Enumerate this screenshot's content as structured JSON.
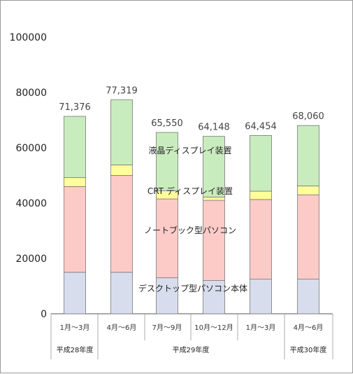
{
  "chart_data": {
    "type": "bar",
    "stacked": true,
    "categories": [
      "1月～3月",
      "4月～6月",
      "7月～9月",
      "10月～12月",
      "1月～3月",
      "4月～6月"
    ],
    "category_groups": [
      {
        "label": "平成28年度",
        "categories": [
          0
        ]
      },
      {
        "label": "平成29年度",
        "categories": [
          1,
          2,
          3,
          4
        ]
      },
      {
        "label": "平成30年度",
        "categories": [
          5
        ]
      }
    ],
    "highlight_index": 5,
    "highlight_color": "#e8231c",
    "totals": [
      "71,376",
      "77,319",
      "65,550",
      "64,148",
      "64,454",
      "68,060"
    ],
    "series": [
      {
        "name": "デスクトップ型パソコン本体",
        "color": "#d8dded",
        "values": [
          15000,
          15000,
          13000,
          12000,
          12500,
          12500
        ]
      },
      {
        "name": "ノートブック型パソコン",
        "color": "#fccbc8",
        "values": [
          31000,
          35000,
          28500,
          29000,
          28800,
          30500
        ]
      },
      {
        "name": "CRT ディスプレイ装置",
        "color": "#ffff9a",
        "values": [
          3200,
          3800,
          3000,
          1200,
          3000,
          3200
        ]
      },
      {
        "name": "液晶ディスプレイ装置",
        "color": "#c9ecbe",
        "values": [
          22176,
          23519,
          21050,
          21948,
          20154,
          21860
        ]
      }
    ],
    "ylim": [
      0,
      100000
    ],
    "yticks": [
      "100000",
      "80000",
      "60000",
      "40000",
      "20000",
      "0"
    ],
    "grid": false,
    "legend": "inline labels on fifth-from-left bar column region",
    "xlabel": "",
    "ylabel": "",
    "title": ""
  }
}
